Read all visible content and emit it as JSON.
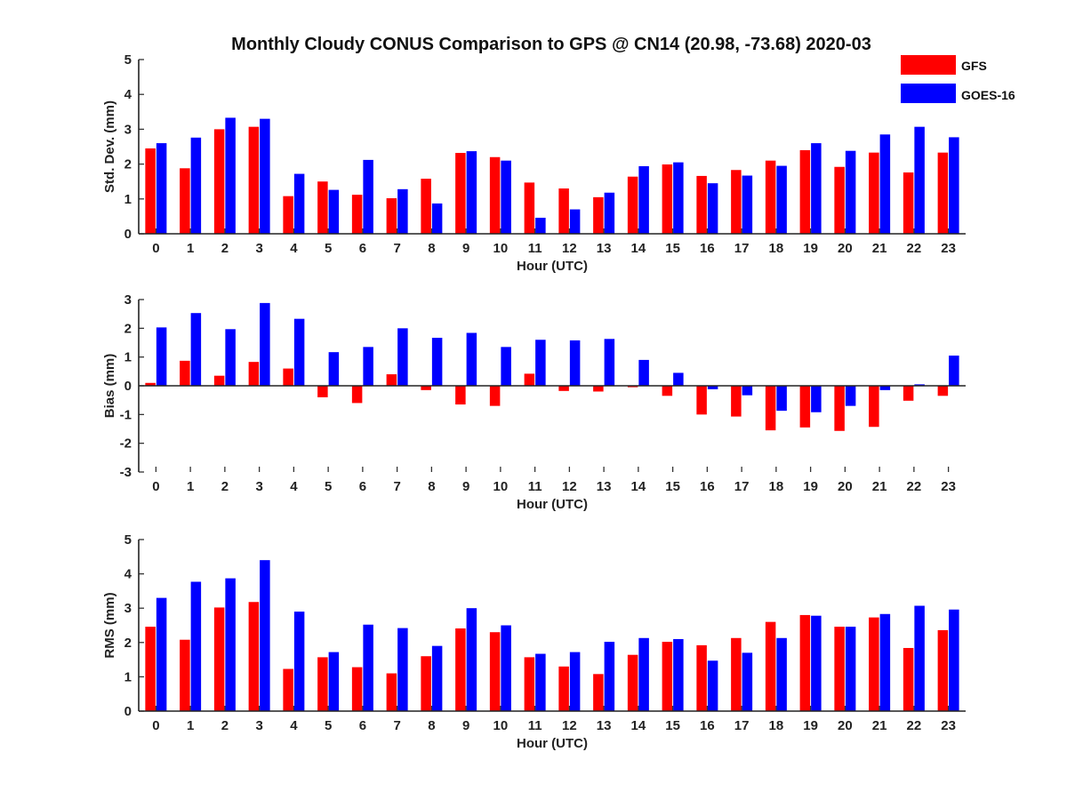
{
  "chart_data": {
    "type": "bar",
    "title": "Monthly Cloudy CONUS Comparison to GPS @ CN14 (20.98, -73.68) 2020-03",
    "categories": [
      "0",
      "1",
      "2",
      "3",
      "4",
      "5",
      "6",
      "7",
      "8",
      "9",
      "10",
      "11",
      "12",
      "13",
      "14",
      "15",
      "16",
      "17",
      "18",
      "19",
      "20",
      "21",
      "22",
      "23"
    ],
    "legend": [
      {
        "name": "GFS",
        "color": "#ff0000"
      },
      {
        "name": "GOES-16",
        "color": "#0000ff"
      }
    ],
    "legend_position": "top-right",
    "panels": [
      {
        "id": "std",
        "xlabel": "Hour (UTC)",
        "ylabel": "Std. Dev. (mm)",
        "ylim": [
          0,
          5
        ],
        "yticks": [
          0,
          1,
          2,
          3,
          4,
          5
        ],
        "series": [
          {
            "name": "GFS",
            "values": [
              2.45,
              1.88,
              3.0,
              3.07,
              1.08,
              1.5,
              1.12,
              1.02,
              1.58,
              2.32,
              2.2,
              1.47,
              1.3,
              1.05,
              1.64,
              1.99,
              1.66,
              1.83,
              2.1,
              2.4,
              1.92,
              2.33,
              1.76,
              2.33
            ]
          },
          {
            "name": "GOES-16",
            "values": [
              2.6,
              2.76,
              3.33,
              3.3,
              1.72,
              1.26,
              2.12,
              1.28,
              0.87,
              2.37,
              2.1,
              0.46,
              0.7,
              1.18,
              1.94,
              2.05,
              1.45,
              1.67,
              1.95,
              2.6,
              2.38,
              2.85,
              3.07,
              2.77
            ]
          }
        ]
      },
      {
        "id": "bias",
        "xlabel": "Hour (UTC)",
        "ylabel": "Bias (mm)",
        "ylim": [
          -3,
          3
        ],
        "yticks": [
          -3,
          -2,
          -1,
          0,
          1,
          2,
          3
        ],
        "series": [
          {
            "name": "GFS",
            "values": [
              0.1,
              0.87,
              0.35,
              0.83,
              0.6,
              -0.4,
              -0.6,
              0.4,
              -0.15,
              -0.65,
              -0.7,
              0.42,
              -0.18,
              -0.2,
              -0.05,
              -0.35,
              -1.0,
              -1.07,
              -1.55,
              -1.45,
              -1.57,
              -1.43,
              -0.52,
              -0.35
            ]
          },
          {
            "name": "GOES-16",
            "values": [
              2.03,
              2.53,
              1.97,
              2.88,
              2.33,
              1.17,
              1.35,
              2.0,
              1.67,
              1.84,
              1.35,
              1.6,
              1.58,
              1.63,
              0.9,
              0.45,
              -0.12,
              -0.33,
              -0.87,
              -0.92,
              -0.7,
              -0.15,
              0.05,
              1.05
            ]
          }
        ]
      },
      {
        "id": "rms",
        "xlabel": "Hour (UTC)",
        "ylabel": "RMS (mm)",
        "ylim": [
          0,
          5
        ],
        "yticks": [
          0,
          1,
          2,
          3,
          4,
          5
        ],
        "series": [
          {
            "name": "GFS",
            "values": [
              2.46,
              2.08,
              3.02,
              3.18,
              1.23,
              1.57,
              1.28,
              1.1,
              1.6,
              2.41,
              2.3,
              1.57,
              1.3,
              1.08,
              1.64,
              2.02,
              1.92,
              2.13,
              2.6,
              2.8,
              2.46,
              2.73,
              1.84,
              2.36
            ]
          },
          {
            "name": "GOES-16",
            "values": [
              3.3,
              3.77,
              3.87,
              4.4,
              2.9,
              1.72,
              2.52,
              2.42,
              1.9,
              3.0,
              2.5,
              1.67,
              1.72,
              2.02,
              2.13,
              2.1,
              1.47,
              1.7,
              2.13,
              2.78,
              2.46,
              2.83,
              3.07,
              2.96
            ]
          }
        ]
      }
    ]
  }
}
